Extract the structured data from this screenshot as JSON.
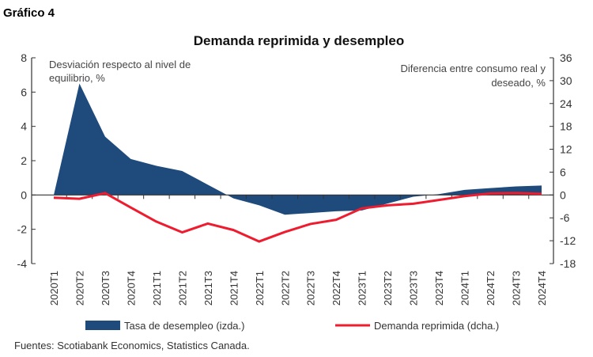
{
  "figure_label": "Gráfico 4",
  "source": "Fuentes: Scotiabank Economics, Statistics Canada.",
  "colors": {
    "area": "#1f4a7c",
    "line": "#ee1c2e",
    "axis": "#333333"
  },
  "chart_data": {
    "type": "area+line",
    "title": "Demanda reprimida y desempleo",
    "ylabel_left": "Desviación respecto al nivel de equilibrio, %",
    "ylabel_right": "Diferencia entre consumo real y deseado, %",
    "ylim_left": [
      -4,
      8
    ],
    "ylim_right": [
      -18,
      36
    ],
    "yticks_left": [
      8,
      6,
      4,
      2,
      0,
      -2,
      -4
    ],
    "yticks_right": [
      36,
      30,
      24,
      18,
      12,
      6,
      0,
      -6,
      -12,
      -18
    ],
    "grid": false,
    "legend_position": "bottom",
    "categories": [
      "2020T1",
      "2020T2",
      "2020T3",
      "2020T4",
      "2021T1",
      "2021T2",
      "2021T3",
      "2021T4",
      "2022T1",
      "2022T2",
      "2022T3",
      "2022T4",
      "2023T1",
      "2023T2",
      "2023T3",
      "2023T4",
      "2024T1",
      "2024T2",
      "2024T3",
      "2024T4"
    ],
    "series": [
      {
        "name": "Tasa de desempleo (izda.)",
        "type": "area",
        "axis": "left",
        "values": [
          0,
          6.5,
          3.4,
          2.1,
          1.7,
          1.4,
          0.6,
          -0.2,
          -0.6,
          -1.15,
          -1.05,
          -0.95,
          -0.9,
          -0.5,
          -0.1,
          0.05,
          0.3,
          0.4,
          0.5,
          0.55
        ]
      },
      {
        "name": "Demanda reprimida (dcha.)",
        "type": "line",
        "axis": "right",
        "values": [
          -0.7,
          -1.0,
          0.5,
          -3.3,
          -7.0,
          -9.8,
          -7.5,
          -9.2,
          -12.2,
          -9.7,
          -7.6,
          -6.5,
          -3.5,
          -2.7,
          -2.3,
          -1.3,
          -0.3,
          0.4,
          0.5,
          0.3
        ]
      }
    ]
  }
}
